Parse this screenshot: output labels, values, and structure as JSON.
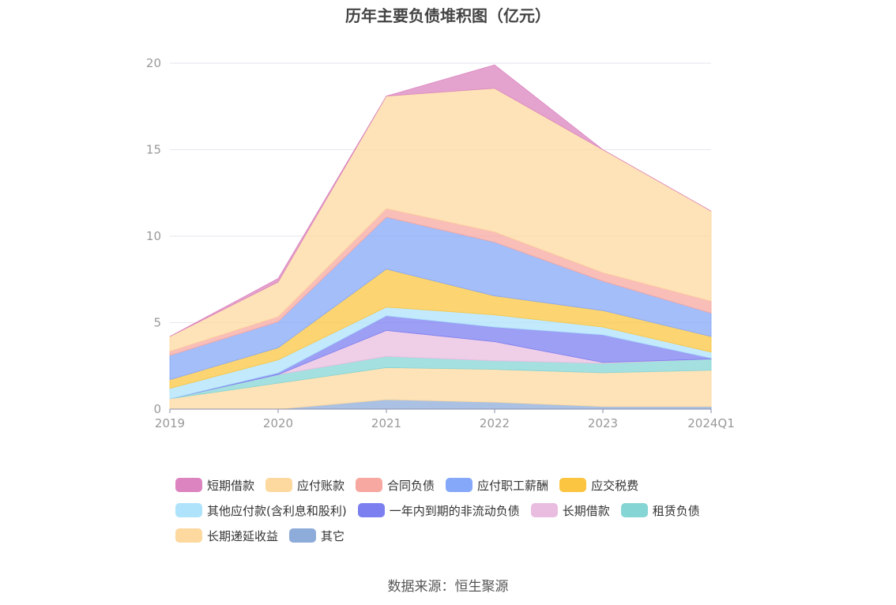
{
  "chart_data": {
    "type": "area",
    "stacked": true,
    "title": "历年主要负债堆积图（亿元）",
    "categories": [
      "2019",
      "2020",
      "2021",
      "2022",
      "2023",
      "2024Q1"
    ],
    "ylim": [
      0,
      20
    ],
    "yticks": [
      0,
      5,
      10,
      15,
      20
    ],
    "grid": true,
    "legend_position": "bottom",
    "series": [
      {
        "name": "其它",
        "color": "#8eacd9",
        "values": [
          0.0,
          0.0,
          0.55,
          0.4,
          0.15,
          0.15
        ]
      },
      {
        "name": "长期递延收益",
        "color": "#fdd9a0",
        "values": [
          0.6,
          1.5,
          1.85,
          1.9,
          1.95,
          2.1
        ]
      },
      {
        "name": "租赁负债",
        "color": "#86d5d5",
        "values": [
          0.0,
          0.5,
          0.65,
          0.5,
          0.55,
          0.65
        ]
      },
      {
        "name": "长期借款",
        "color": "#e9bde0",
        "values": [
          0.0,
          0.0,
          1.5,
          1.1,
          0.05,
          0.0
        ]
      },
      {
        "name": "一年内到期的非流动负债",
        "color": "#7b7ff0",
        "values": [
          0.0,
          0.1,
          0.85,
          0.85,
          1.6,
          0.05
        ]
      },
      {
        "name": "其他应付款(含利息和股利)",
        "color": "#aee3fb",
        "values": [
          0.6,
          0.75,
          0.5,
          0.7,
          0.45,
          0.35
        ]
      },
      {
        "name": "应交税费",
        "color": "#fbc541",
        "values": [
          0.5,
          0.7,
          2.2,
          1.1,
          0.95,
          0.9
        ]
      },
      {
        "name": "应付职工薪酬",
        "color": "#86a8f8",
        "values": [
          1.4,
          1.5,
          3.0,
          3.1,
          1.7,
          1.35
        ]
      },
      {
        "name": "合同负债",
        "color": "#f7a8a0",
        "values": [
          0.25,
          0.3,
          0.5,
          0.6,
          0.5,
          0.7
        ]
      },
      {
        "name": "应付账款",
        "color": "#fdd9a0",
        "values": [
          0.85,
          2.0,
          6.5,
          8.3,
          7.1,
          5.2
        ]
      },
      {
        "name": "短期借款",
        "color": "#db84bf",
        "values": [
          0.0,
          0.2,
          0.0,
          1.35,
          0.0,
          0.0
        ]
      }
    ],
    "legend_rows": [
      [
        "短期借款",
        "应付账款",
        "合同负债",
        "应付职工薪酬",
        "应交税费"
      ],
      [
        "其他应付款(含利息和股利)",
        "一年内到期的非流动负债",
        "长期借款",
        "租赁负债"
      ],
      [
        "长期递延收益",
        "其它"
      ]
    ]
  },
  "source": "数据来源：恒生聚源"
}
